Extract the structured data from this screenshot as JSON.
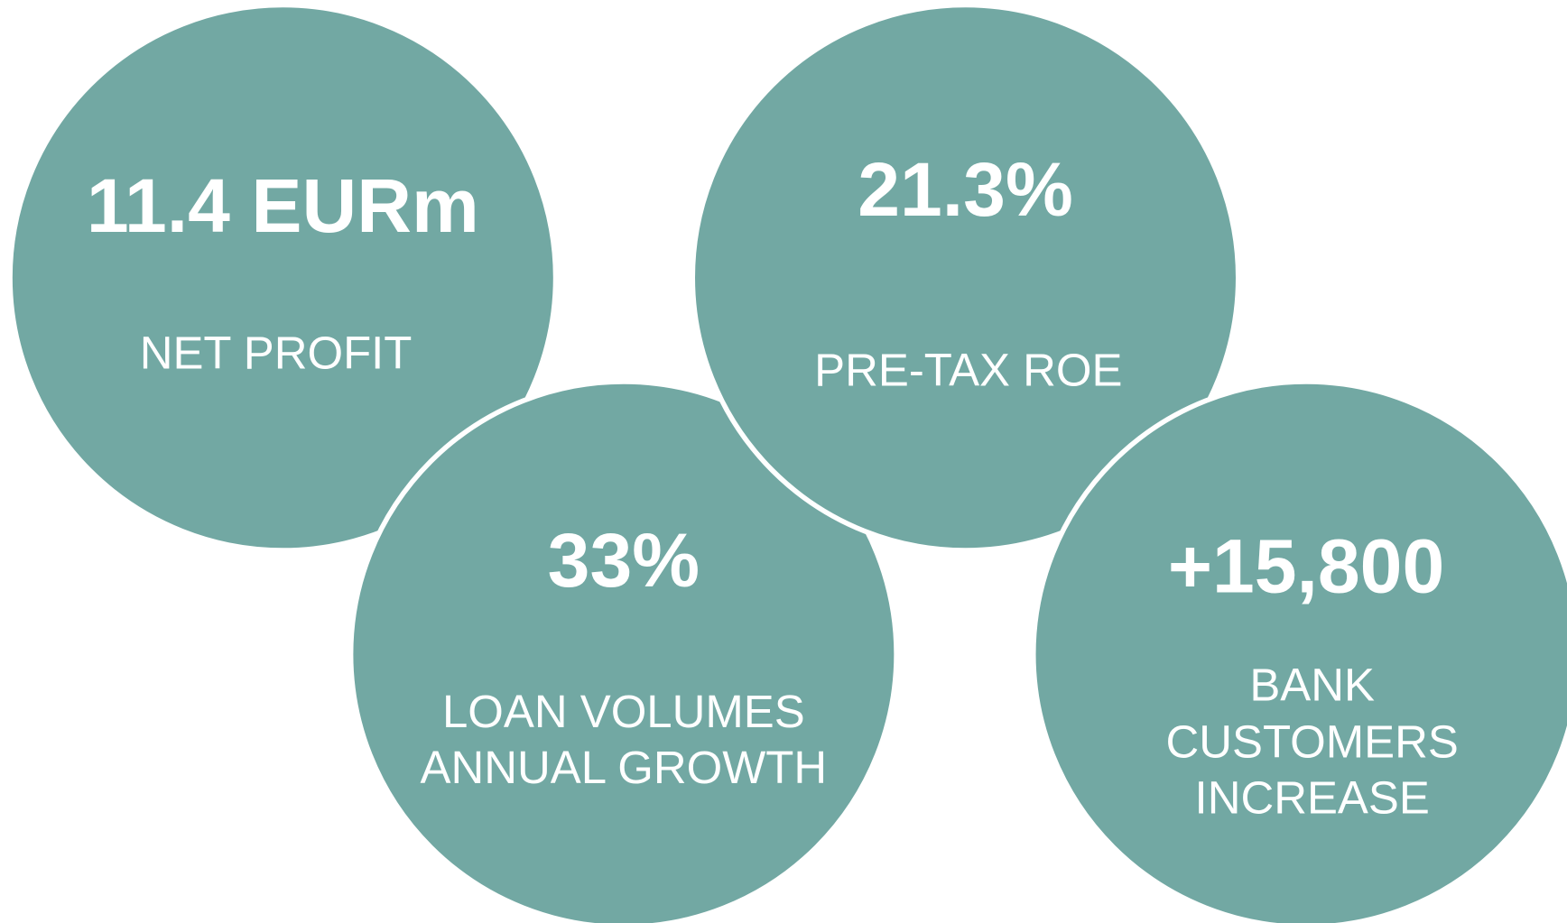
{
  "kpis": [
    {
      "value": "11.4 EURm",
      "label": [
        "NET PROFIT"
      ]
    },
    {
      "value": "21.3%",
      "label": [
        "PRE-TAX ROE"
      ]
    },
    {
      "value": "33%",
      "label": [
        "LOAN VOLUMES",
        "ANNUAL GROWTH"
      ]
    },
    {
      "value": "+15,800",
      "label": [
        "BANK",
        "CUSTOMERS",
        "INCREASE"
      ]
    }
  ]
}
